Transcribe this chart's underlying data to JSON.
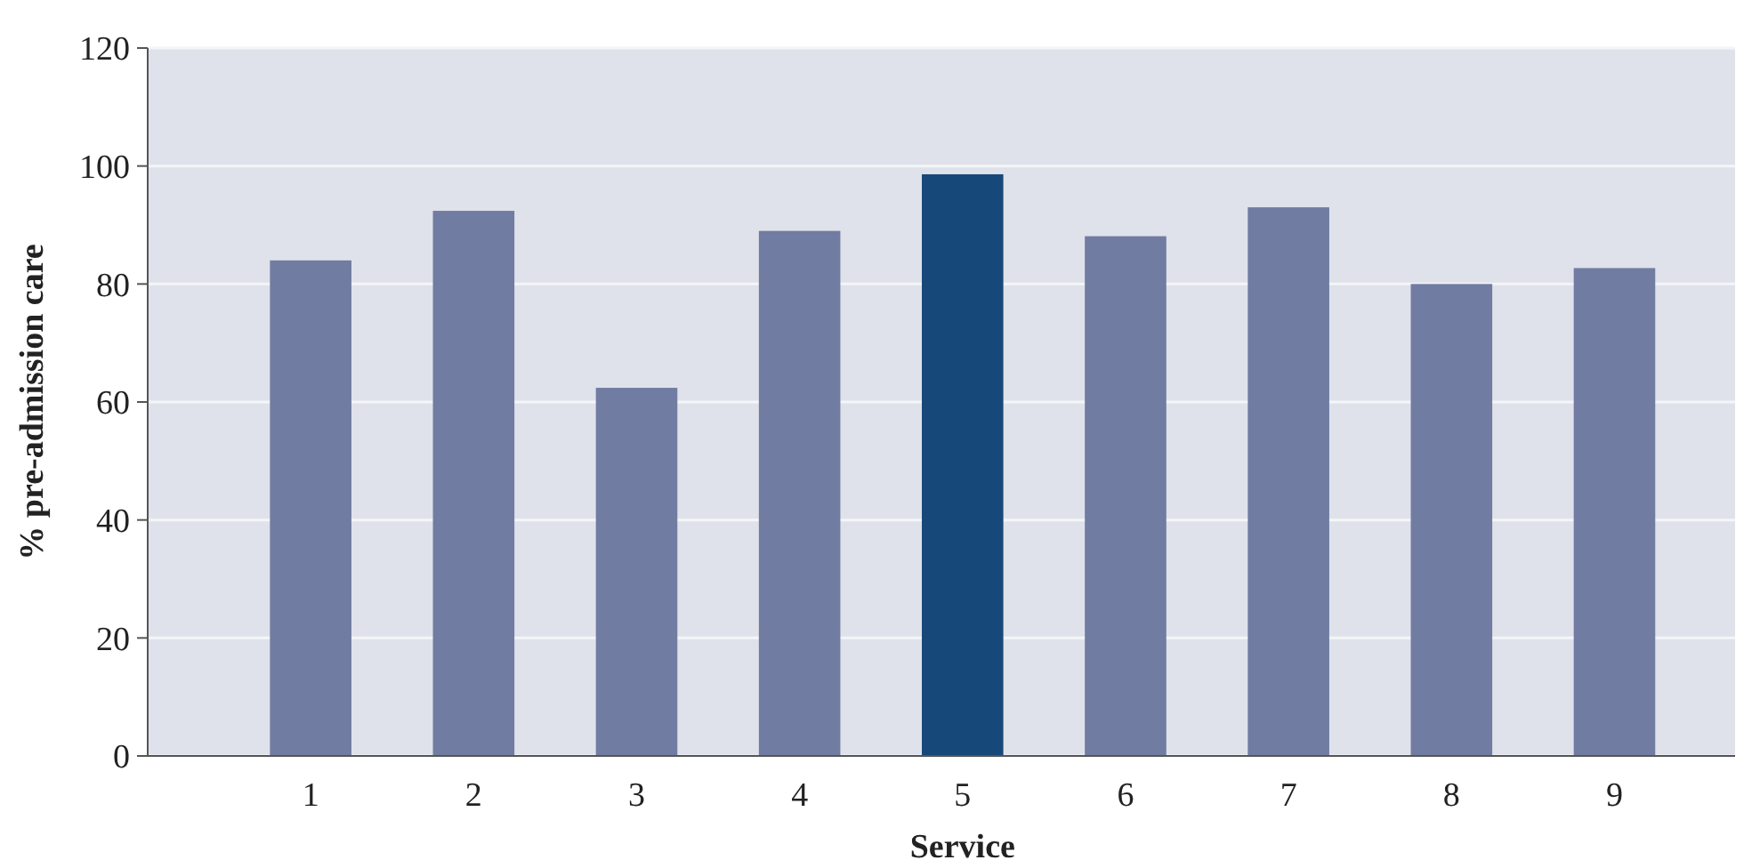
{
  "chart_data": {
    "type": "bar",
    "xlabel": "Service",
    "ylabel": "% pre-admission care",
    "categories": [
      "1",
      "2",
      "3",
      "4",
      "5",
      "6",
      "7",
      "8",
      "9"
    ],
    "values": [
      84,
      92.4,
      62.4,
      89,
      98.6,
      88.1,
      93,
      80,
      82.7
    ],
    "colors": [
      "#717ca2",
      "#717ca2",
      "#717ca2",
      "#717ca2",
      "#16497a",
      "#717ca2",
      "#717ca2",
      "#717ca2",
      "#717ca2"
    ],
    "ylim": [
      0,
      120
    ],
    "yticks": [
      0,
      20,
      40,
      60,
      80,
      100,
      120
    ],
    "grid": "y"
  }
}
